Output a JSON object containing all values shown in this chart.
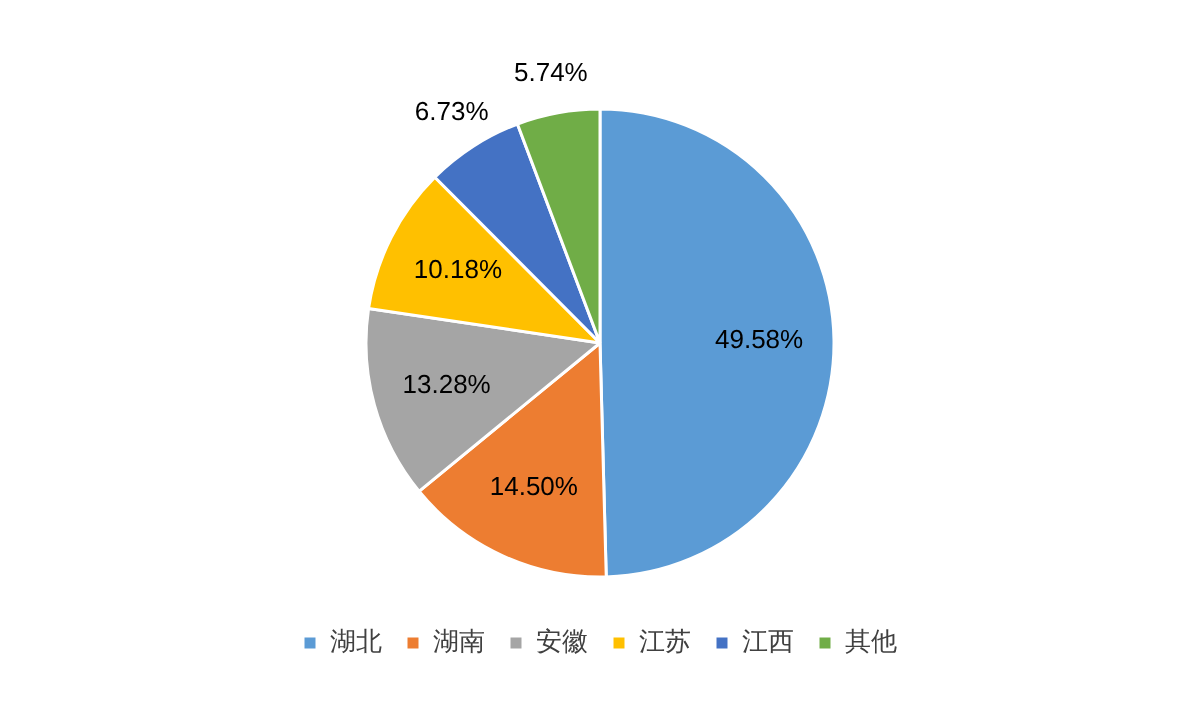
{
  "chart_data": {
    "type": "pie",
    "categories": [
      "湖北",
      "湖南",
      "安徽",
      "江苏",
      "江西",
      "其他"
    ],
    "values": [
      49.58,
      14.5,
      13.28,
      10.18,
      6.73,
      5.74
    ],
    "colors": [
      "#5b9bd5",
      "#ed7d31",
      "#a5a5a5",
      "#ffc000",
      "#4472c4",
      "#70ad47"
    ],
    "value_labels": [
      "49.58%",
      "14.50%",
      "13.28%",
      "10.18%",
      "6.73%",
      "5.74%"
    ],
    "legend": "bottom"
  }
}
